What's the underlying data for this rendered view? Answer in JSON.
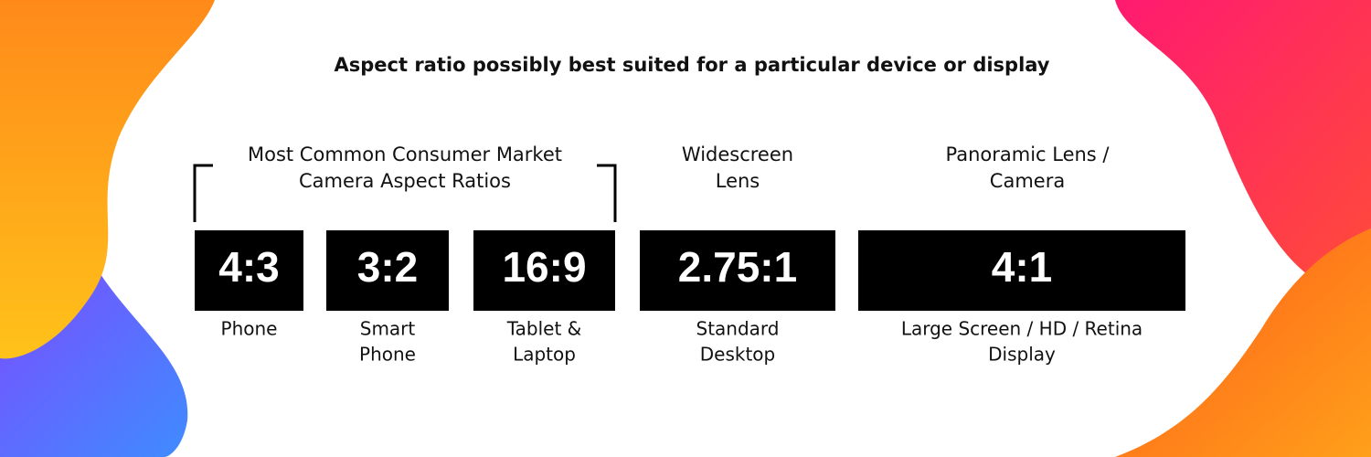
{
  "title": "Aspect ratio possibly best suited for a particular device or display",
  "groups": [
    {
      "heading": [
        "Most Common Consumer Market",
        "Camera Aspect Ratios"
      ]
    },
    {
      "heading": [
        "Widescreen",
        "Lens"
      ]
    },
    {
      "heading": [
        "Panoramic Lens /",
        "Camera"
      ]
    }
  ],
  "items": [
    {
      "ratio": "4:3",
      "device": [
        "Phone"
      ]
    },
    {
      "ratio": "3:2",
      "device": [
        "Smart",
        "Phone"
      ]
    },
    {
      "ratio": "16:9",
      "device": [
        "Tablet &",
        "Laptop"
      ]
    },
    {
      "ratio": "2.75:1",
      "device": [
        "Standard",
        "Desktop"
      ]
    },
    {
      "ratio": "4:1",
      "device": [
        "Large Screen / HD / Retina",
        "Display"
      ]
    }
  ]
}
